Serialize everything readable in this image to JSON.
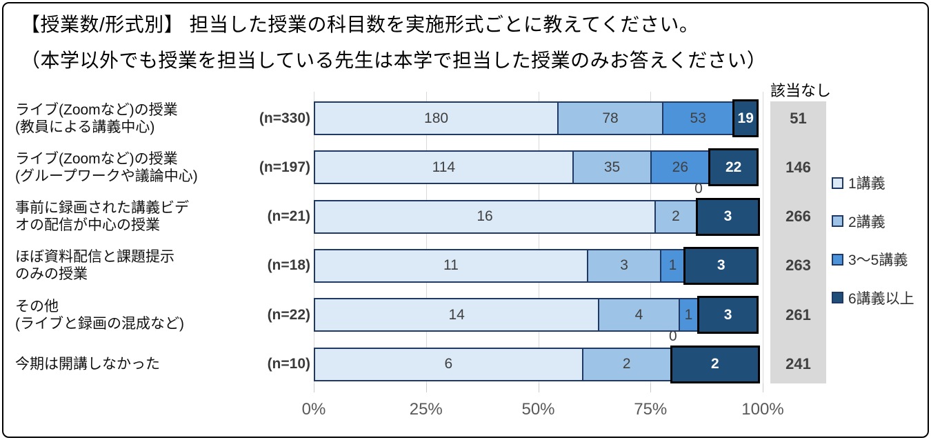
{
  "title": {
    "line1": "【授業数/形式別】 担当した授業の科目数を実施形式ごとに教えてください。",
    "line2": "（本学以外でも授業を担当している先生は本学で担当した授業のみお答えください）"
  },
  "na_column": {
    "header": "該当なし"
  },
  "colors": {
    "series": [
      "#DCE9F6",
      "#9DC3E6",
      "#4D93D9",
      "#1F4E79"
    ],
    "segment_border": "#1F3864",
    "last_segment_border": "#000000",
    "na_column_bg": "#D9D9D9",
    "value_text": "#404040",
    "value_text_on_dark": "#FFFFFF",
    "axis_text": "#595959",
    "gridline": "#D9D9D9"
  },
  "chart_data": {
    "type": "bar",
    "orientation": "horizontal",
    "stacked": true,
    "legend_position": "right",
    "grid": true,
    "series_names": [
      "1講義",
      "2講義",
      "3〜5講義",
      "6講義以上"
    ],
    "x_axis": {
      "ticks": [
        "0%",
        "25%",
        "50%",
        "75%",
        "100%"
      ],
      "min": 0,
      "max": 100,
      "note": "segment width = value / n * 100%"
    },
    "rows": [
      {
        "label_lines": [
          "ライブ(Zoomなど)の授業",
          "(教員による講義中心)"
        ],
        "n_label": "(n=330)",
        "n": 330,
        "values": [
          180,
          78,
          53,
          19
        ],
        "na": 51
      },
      {
        "label_lines": [
          "ライブ(Zoomなど)の授業",
          "(グループワークや議論中心)"
        ],
        "n_label": "(n=197)",
        "n": 197,
        "values": [
          114,
          35,
          26,
          22
        ],
        "na": 146
      },
      {
        "label_lines": [
          "事前に録画された講義ビデ",
          "オの配信が中心の授業"
        ],
        "n_label": "(n=21)",
        "n": 21,
        "values": [
          16,
          2,
          0,
          3
        ],
        "na": 266
      },
      {
        "label_lines": [
          "ほぼ資料配信と課題提示",
          "のみの授業"
        ],
        "n_label": "(n=18)",
        "n": 18,
        "values": [
          11,
          3,
          1,
          3
        ],
        "na": 263
      },
      {
        "label_lines": [
          "その他",
          "(ライブと録画の混成など)"
        ],
        "n_label": "(n=22)",
        "n": 22,
        "values": [
          14,
          4,
          1,
          3
        ],
        "na": 261
      },
      {
        "label_lines": [
          "今期は開講しなかった"
        ],
        "n_label": "(n=10)",
        "n": 10,
        "values": [
          6,
          2,
          0,
          2
        ],
        "na": 241
      }
    ]
  }
}
